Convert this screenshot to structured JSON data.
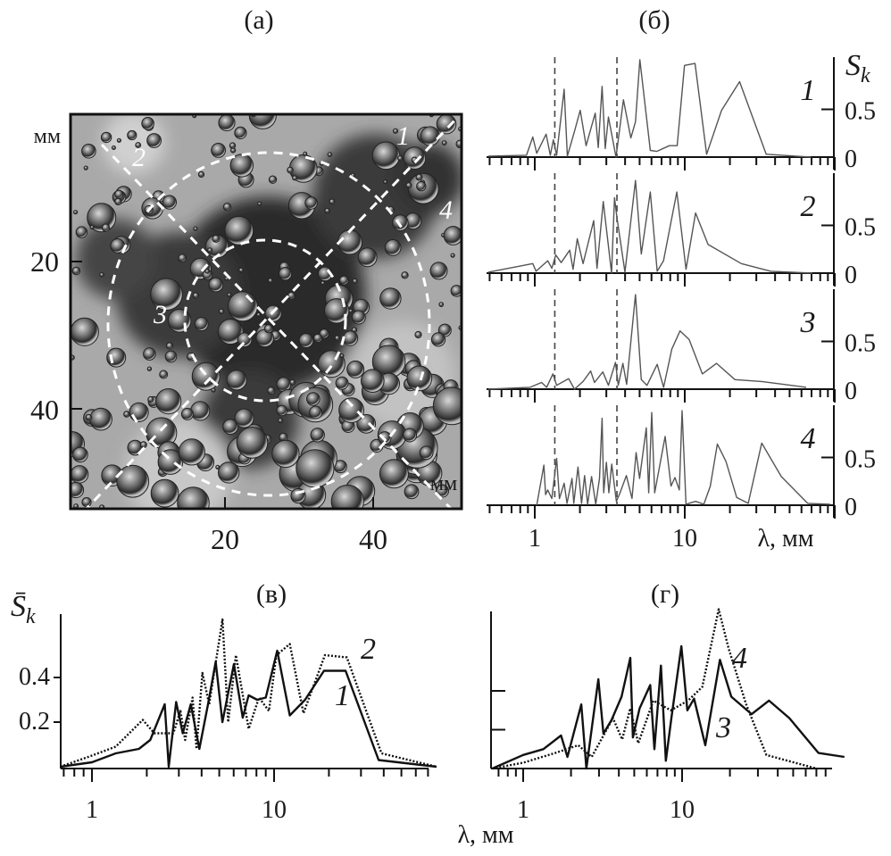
{
  "panels": {
    "a": {
      "title": "(а)",
      "y_unit": "мм",
      "x_unit": "мм",
      "y_ticks": [
        "20",
        "40"
      ],
      "x_ticks": [
        "20",
        "40"
      ],
      "region_labels": [
        "1",
        "2",
        "3",
        "4"
      ]
    },
    "b": {
      "title": "(б)",
      "ylabel_main": "S",
      "ylabel_sub": "k",
      "xlabel": "λ, мм",
      "x_tick_labels": [
        "1",
        "10"
      ],
      "y_tick_labels": [
        "0.5",
        "0"
      ]
    },
    "c": {
      "title": "(в)",
      "ylabel_main": "S̄",
      "ylabel_sub": "k",
      "x_tick_labels": [
        "1",
        "10"
      ],
      "y_tick_labels": [
        "0.4",
        "0.2"
      ]
    },
    "d": {
      "title": "(г)",
      "x_tick_labels": [
        "1",
        "10"
      ]
    },
    "shared_xlabel": "λ, мм"
  },
  "colors": {
    "spectrum_b": "#555555",
    "line": "#111111"
  },
  "chart_data": [
    {
      "panel": "б",
      "type": "line",
      "x_scale": "log",
      "xlim": [
        0.48,
        100
      ],
      "ylim": [
        0,
        1.05
      ],
      "subplots": [
        {
          "label": "1",
          "dashed_markers_x": [
            1.36,
            3.53
          ],
          "points": [
            [
              0.49,
              0.01
            ],
            [
              0.88,
              0.02
            ],
            [
              0.97,
              0.21
            ],
            [
              1.03,
              0.04
            ],
            [
              1.19,
              0.24
            ],
            [
              1.27,
              0.02
            ],
            [
              1.33,
              0.18
            ],
            [
              1.4,
              0.02
            ],
            [
              1.57,
              0.71
            ],
            [
              1.65,
              0.01
            ],
            [
              1.84,
              0.27
            ],
            [
              2.01,
              0.49
            ],
            [
              2.2,
              0.12
            ],
            [
              2.53,
              0.46
            ],
            [
              2.65,
              0.1
            ],
            [
              2.81,
              0.74
            ],
            [
              2.95,
              0.09
            ],
            [
              3.1,
              0.42
            ],
            [
              3.48,
              0.0
            ],
            [
              3.9,
              0.6
            ],
            [
              4.37,
              0.2
            ],
            [
              4.69,
              0.37
            ],
            [
              5.02,
              1.02
            ],
            [
              5.89,
              0.07
            ],
            [
              6.5,
              0.06
            ],
            [
              7.9,
              0.12
            ],
            [
              8.9,
              0.12
            ],
            [
              9.96,
              0.96
            ],
            [
              11.7,
              0.98
            ],
            [
              14.0,
              0.03
            ],
            [
              17.6,
              0.49
            ],
            [
              23.2,
              0.79
            ],
            [
              34.9,
              0.03
            ],
            [
              69.4,
              0.0
            ]
          ]
        },
        {
          "label": "2",
          "dashed_markers_x": [
            1.36,
            3.53
          ],
          "points": [
            [
              0.49,
              0.01
            ],
            [
              0.97,
              0.1
            ],
            [
              1.02,
              0.02
            ],
            [
              1.22,
              0.13
            ],
            [
              1.3,
              0.05
            ],
            [
              1.38,
              0.19
            ],
            [
              1.5,
              0.11
            ],
            [
              1.71,
              0.24
            ],
            [
              1.8,
              0.04
            ],
            [
              1.92,
              0.36
            ],
            [
              2.1,
              0.1
            ],
            [
              2.47,
              0.55
            ],
            [
              2.6,
              0.05
            ],
            [
              2.86,
              0.75
            ],
            [
              3.25,
              0.0
            ],
            [
              3.4,
              0.79
            ],
            [
              3.54,
              0.57
            ],
            [
              3.99,
              0.01
            ],
            [
              4.69,
              0.97
            ],
            [
              5.13,
              0.2
            ],
            [
              5.89,
              0.85
            ],
            [
              6.55,
              0.02
            ],
            [
              7.22,
              0.13
            ],
            [
              8.85,
              0.85
            ],
            [
              10.2,
              0.04
            ],
            [
              11.8,
              0.63
            ],
            [
              14.3,
              0.3
            ],
            [
              23.8,
              0.1
            ],
            [
              37.5,
              0.02
            ],
            [
              71,
              0.0
            ]
          ]
        },
        {
          "label": "3",
          "dashed_markers_x": [
            1.36,
            3.53
          ],
          "points": [
            [
              0.49,
              0.0
            ],
            [
              0.93,
              0.02
            ],
            [
              1.11,
              0.07
            ],
            [
              1.2,
              0.02
            ],
            [
              1.32,
              0.16
            ],
            [
              1.4,
              0.04
            ],
            [
              1.68,
              0.11
            ],
            [
              1.84,
              0.0
            ],
            [
              2.1,
              0.08
            ],
            [
              2.36,
              0.19
            ],
            [
              2.5,
              0.07
            ],
            [
              2.84,
              0.18
            ],
            [
              3.1,
              0.04
            ],
            [
              3.45,
              0.28
            ],
            [
              3.6,
              0.04
            ],
            [
              3.87,
              0.27
            ],
            [
              4.1,
              0.05
            ],
            [
              4.69,
              0.99
            ],
            [
              5.13,
              0.1
            ],
            [
              5.6,
              0.04
            ],
            [
              6.55,
              0.26
            ],
            [
              7.23,
              0.02
            ],
            [
              8.2,
              0.42
            ],
            [
              9.3,
              0.61
            ],
            [
              10.7,
              0.52
            ],
            [
              13.1,
              0.16
            ],
            [
              16.3,
              0.27
            ],
            [
              21.6,
              0.1
            ],
            [
              32.6,
              0.08
            ],
            [
              64.5,
              0.02
            ]
          ]
        },
        {
          "label": "4",
          "dashed_markers_x": [
            1.36,
            3.53
          ],
          "points": [
            [
              1.03,
              0.0
            ],
            [
              1.06,
              0.11
            ],
            [
              1.15,
              0.42
            ],
            [
              1.18,
              0.11
            ],
            [
              1.22,
              0.16
            ],
            [
              1.3,
              0.07
            ],
            [
              1.4,
              0.49
            ],
            [
              1.46,
              0.07
            ],
            [
              1.57,
              0.23
            ],
            [
              1.64,
              0.02
            ],
            [
              1.77,
              0.28
            ],
            [
              1.82,
              0.02
            ],
            [
              1.94,
              0.4
            ],
            [
              2.05,
              0.02
            ],
            [
              2.15,
              0.31
            ],
            [
              2.25,
              0.01
            ],
            [
              2.39,
              0.3
            ],
            [
              2.55,
              0.01
            ],
            [
              2.7,
              0.28
            ],
            [
              2.81,
              0.91
            ],
            [
              2.88,
              0.13
            ],
            [
              3.0,
              0.45
            ],
            [
              3.12,
              0.13
            ],
            [
              3.26,
              0.43
            ],
            [
              3.5,
              0.04
            ],
            [
              3.7,
              0.13
            ],
            [
              4.08,
              0.31
            ],
            [
              4.45,
              0.07
            ],
            [
              4.74,
              0.55
            ],
            [
              5.0,
              0.28
            ],
            [
              5.54,
              0.81
            ],
            [
              5.75,
              0.13
            ],
            [
              6.02,
              0.97
            ],
            [
              6.3,
              0.13
            ],
            [
              7.4,
              0.72
            ],
            [
              8.1,
              0.2
            ],
            [
              8.6,
              0.29
            ],
            [
              9.2,
              0.16
            ],
            [
              9.6,
              0.99
            ],
            [
              10.2,
              0.01
            ],
            [
              11.8,
              0.04
            ],
            [
              13.4,
              0.01
            ],
            [
              14.8,
              0.2
            ],
            [
              16.5,
              0.64
            ],
            [
              18.8,
              0.46
            ],
            [
              22.2,
              0.08
            ],
            [
              26.5,
              0.02
            ],
            [
              32.6,
              0.65
            ],
            [
              44.0,
              0.3
            ],
            [
              66,
              0.02
            ],
            [
              93,
              0.01
            ]
          ]
        }
      ]
    },
    {
      "panel": "в",
      "type": "line",
      "x_scale": "log",
      "xlim": [
        0.67,
        100
      ],
      "ylim": [
        0,
        0.68
      ],
      "y_ticks": [
        0.2,
        0.4
      ],
      "series": [
        {
          "label": "1",
          "style": "solid",
          "points": [
            [
              0.67,
              0.0
            ],
            [
              1.0,
              0.02
            ],
            [
              1.35,
              0.06
            ],
            [
              1.81,
              0.08
            ],
            [
              2.09,
              0.12
            ],
            [
              2.51,
              0.28
            ],
            [
              2.64,
              0.0
            ],
            [
              2.9,
              0.29
            ],
            [
              3.15,
              0.15
            ],
            [
              3.49,
              0.28
            ],
            [
              3.89,
              0.08
            ],
            [
              4.34,
              0.28
            ],
            [
              4.78,
              0.47
            ],
            [
              5.2,
              0.2
            ],
            [
              6.02,
              0.46
            ],
            [
              6.73,
              0.22
            ],
            [
              7.25,
              0.32
            ],
            [
              8.08,
              0.3
            ],
            [
              9.0,
              0.31
            ],
            [
              10.4,
              0.52
            ],
            [
              12.2,
              0.23
            ],
            [
              14.8,
              0.3
            ],
            [
              18.8,
              0.43
            ],
            [
              24.7,
              0.43
            ],
            [
              37.5,
              0.03
            ],
            [
              78,
              0.0
            ]
          ]
        },
        {
          "label": "2",
          "style": "dotted",
          "points": [
            [
              0.67,
              0.0
            ],
            [
              1.0,
              0.05
            ],
            [
              1.35,
              0.09
            ],
            [
              1.9,
              0.21
            ],
            [
              2.2,
              0.15
            ],
            [
              2.8,
              0.15
            ],
            [
              3.06,
              0.25
            ],
            [
              3.25,
              0.12
            ],
            [
              3.57,
              0.31
            ],
            [
              3.75,
              0.08
            ],
            [
              4.04,
              0.42
            ],
            [
              4.4,
              0.28
            ],
            [
              5.21,
              0.66
            ],
            [
              5.6,
              0.2
            ],
            [
              6.17,
              0.5
            ],
            [
              7.25,
              0.17
            ],
            [
              8.26,
              0.31
            ],
            [
              9.37,
              0.25
            ],
            [
              10.3,
              0.5
            ],
            [
              12.2,
              0.55
            ],
            [
              14.5,
              0.24
            ],
            [
              19.0,
              0.5
            ],
            [
              25.1,
              0.49
            ],
            [
              38.9,
              0.06
            ],
            [
              78,
              0.0
            ]
          ]
        }
      ]
    },
    {
      "panel": "г",
      "type": "line",
      "x_scale": "log",
      "xlim": [
        0.63,
        107
      ],
      "ylim": [
        0,
        0.8
      ],
      "y_ticks": [
        0.2,
        0.4
      ],
      "series": [
        {
          "label": "3",
          "style": "solid",
          "points": [
            [
              0.64,
              0.0
            ],
            [
              1.0,
              0.07
            ],
            [
              1.34,
              0.1
            ],
            [
              1.73,
              0.17
            ],
            [
              1.9,
              0.06
            ],
            [
              2.32,
              0.33
            ],
            [
              2.5,
              0.0
            ],
            [
              2.97,
              0.46
            ],
            [
              3.2,
              0.18
            ],
            [
              3.6,
              0.25
            ],
            [
              4.16,
              0.37
            ],
            [
              4.72,
              0.57
            ],
            [
              4.9,
              0.16
            ],
            [
              5.4,
              0.31
            ],
            [
              6.3,
              0.43
            ],
            [
              6.7,
              0.1
            ],
            [
              7.36,
              0.53
            ],
            [
              7.9,
              0.04
            ],
            [
              8.6,
              0.27
            ],
            [
              9.9,
              0.63
            ],
            [
              10.8,
              0.3
            ],
            [
              11.9,
              0.36
            ],
            [
              14.0,
              0.12
            ],
            [
              17.3,
              0.56
            ],
            [
              20.4,
              0.37
            ],
            [
              27.4,
              0.28
            ],
            [
              35.2,
              0.35
            ],
            [
              47.3,
              0.26
            ],
            [
              72.2,
              0.08
            ],
            [
              105,
              0.06
            ]
          ]
        },
        {
          "label": "4",
          "style": "dotted",
          "points": [
            [
              0.64,
              0.0
            ],
            [
              1.0,
              0.03
            ],
            [
              1.59,
              0.08
            ],
            [
              2.22,
              0.12
            ],
            [
              2.7,
              0.06
            ],
            [
              3.67,
              0.26
            ],
            [
              4.2,
              0.15
            ],
            [
              4.72,
              0.31
            ],
            [
              5.3,
              0.13
            ],
            [
              6.6,
              0.35
            ],
            [
              8.5,
              0.3
            ],
            [
              10.9,
              0.35
            ],
            [
              13.4,
              0.42
            ],
            [
              17.0,
              0.82
            ],
            [
              19.6,
              0.62
            ],
            [
              25.3,
              0.33
            ],
            [
              33.9,
              0.07
            ],
            [
              70,
              0.0
            ]
          ]
        }
      ]
    }
  ]
}
